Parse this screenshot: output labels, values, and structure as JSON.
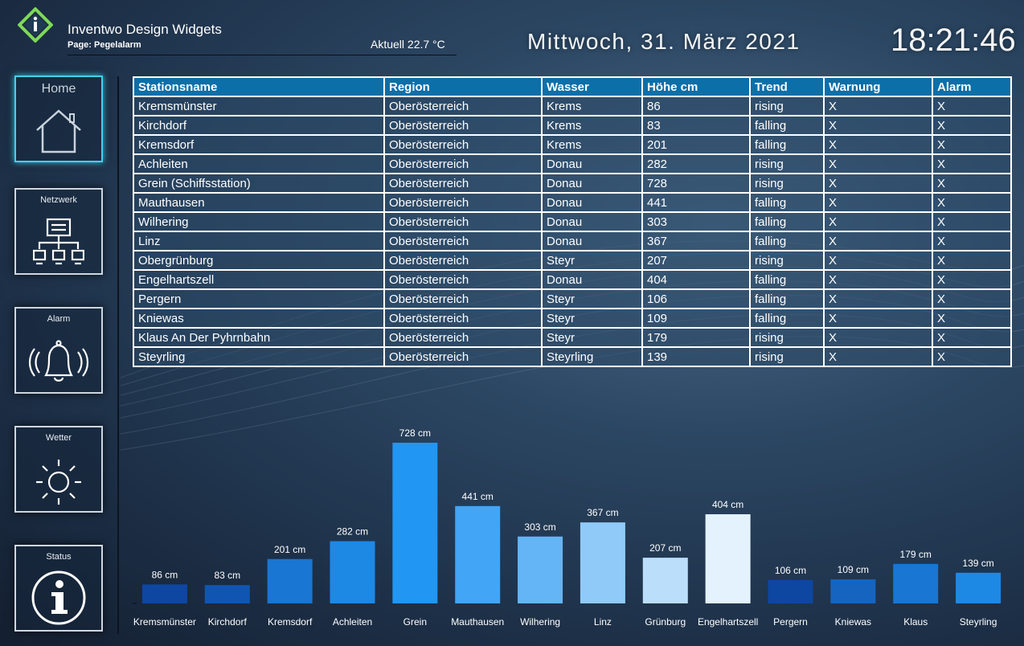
{
  "header": {
    "brand_title": "Inventwo Design Widgets",
    "page_label": "Page: Pegelalarm",
    "temperature": "Aktuell 22.7 °C",
    "date": "Mittwoch, 31. März 2021",
    "time": "18:21:46"
  },
  "sidebar": {
    "items": [
      {
        "label": "Home",
        "icon": "home-icon"
      },
      {
        "label": "Netzwerk",
        "icon": "network-icon"
      },
      {
        "label": "Alarm",
        "icon": "bell-icon"
      },
      {
        "label": "Wetter",
        "icon": "sun-icon"
      },
      {
        "label": "Status",
        "icon": "info-icon"
      }
    ]
  },
  "table": {
    "headers": [
      "Stationsname",
      "Region",
      "Wasser",
      "Höhe cm",
      "Trend",
      "Warnung",
      "Alarm"
    ],
    "rows": [
      [
        "Kremsmünster",
        "Oberösterreich",
        "Krems",
        "86",
        "rising",
        "X",
        "X"
      ],
      [
        "Kirchdorf",
        "Oberösterreich",
        "Krems",
        "83",
        "falling",
        "X",
        "X"
      ],
      [
        "Kremsdorf",
        "Oberösterreich",
        "Krems",
        "201",
        "falling",
        "X",
        "X"
      ],
      [
        "Achleiten",
        "Oberösterreich",
        "Donau",
        "282",
        "rising",
        "X",
        "X"
      ],
      [
        "Grein (Schiffsstation)",
        "Oberösterreich",
        "Donau",
        "728",
        "rising",
        "X",
        "X"
      ],
      [
        "Mauthausen",
        "Oberösterreich",
        "Donau",
        "441",
        "falling",
        "X",
        "X"
      ],
      [
        "Wilhering",
        "Oberösterreich",
        "Donau",
        "303",
        "falling",
        "X",
        "X"
      ],
      [
        "Linz",
        "Oberösterreich",
        "Donau",
        "367",
        "falling",
        "X",
        "X"
      ],
      [
        "Obergrünburg",
        "Oberösterreich",
        "Steyr",
        "207",
        "rising",
        "X",
        "X"
      ],
      [
        "Engelhartszell",
        "Oberösterreich",
        "Donau",
        "404",
        "falling",
        "X",
        "X"
      ],
      [
        "Pergern",
        "Oberösterreich",
        "Steyr",
        "106",
        "falling",
        "X",
        "X"
      ],
      [
        "Kniewas",
        "Oberösterreich",
        "Steyr",
        "109",
        "falling",
        "X",
        "X"
      ],
      [
        "Klaus An Der Pyhrnbahn",
        "Oberösterreich",
        "Steyr",
        "179",
        "rising",
        "X",
        "X"
      ],
      [
        "Steyrling",
        "Oberösterreich",
        "Steyrling",
        "139",
        "rising",
        "X",
        "X"
      ]
    ]
  },
  "chart_data": {
    "type": "bar",
    "categories": [
      "Kremsmünster",
      "Kirchdorf",
      "Kremsdorf",
      "Achleiten",
      "Grein",
      "Mauthausen",
      "Wilhering",
      "Linz",
      "Grünburg",
      "Engelhartszell",
      "Pergern",
      "Kniewas",
      "Klaus",
      "Steyrling"
    ],
    "values": [
      86,
      83,
      201,
      282,
      728,
      441,
      303,
      367,
      207,
      404,
      106,
      109,
      179,
      139
    ],
    "data_labels": [
      "86 cm",
      "83 cm",
      "201 cm",
      "282 cm",
      "728 cm",
      "441 cm",
      "303 cm",
      "367 cm",
      "207 cm",
      "404 cm",
      "106 cm",
      "109 cm",
      "179 cm",
      "139 cm"
    ],
    "colors": [
      "#0d47a1",
      "#1155b3",
      "#1976d2",
      "#1e88e5",
      "#2196f3",
      "#42a5f5",
      "#64b5f6",
      "#90caf9",
      "#bbdefb",
      "#e3f2fd",
      "#0d47a1",
      "#1565c0",
      "#1976d2",
      "#1e88e5"
    ],
    "ylim": [
      0,
      728
    ],
    "grid": false,
    "title": "",
    "xlabel": "",
    "ylabel": ""
  },
  "colors": {
    "accent_active": "#43d0ee",
    "table_header": "#0d6fa8",
    "logo_green": "#7ed957"
  }
}
